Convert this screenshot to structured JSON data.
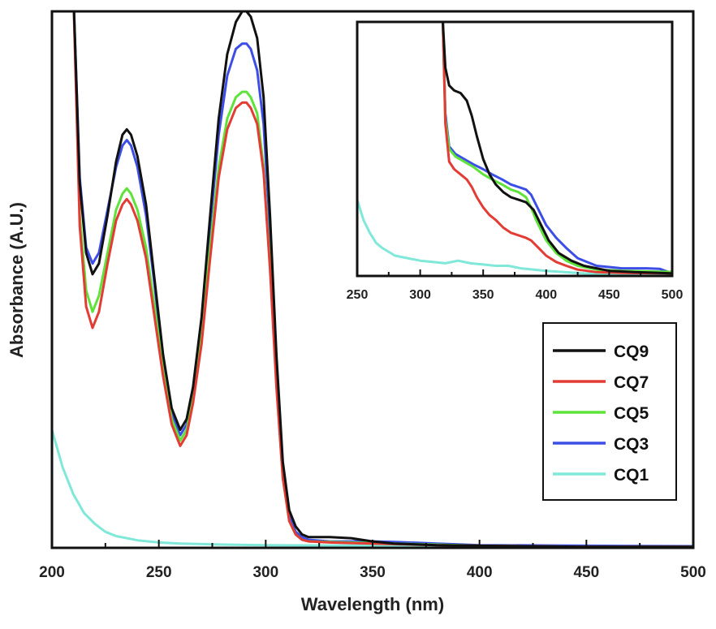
{
  "chart_data": [
    {
      "type": "line",
      "xlabel": "Wavelength (nm)",
      "ylabel": "Absorbance (A.U.)",
      "xlim": [
        200,
        500
      ],
      "ylim": [
        0,
        1
      ],
      "y_tick_labels_shown": false,
      "x_ticks": [
        "200",
        "250",
        "300",
        "350",
        "400",
        "450",
        "500"
      ],
      "legend": {
        "placement": "right",
        "entries": [
          "CQ9",
          "CQ7",
          "CQ5",
          "CQ3",
          "CQ1"
        ]
      },
      "grid": false,
      "series": [
        {
          "name": "CQ9",
          "color": "#111111",
          "x": [
            210,
            213,
            216,
            219,
            222,
            226,
            230,
            233,
            235,
            237,
            240,
            244,
            248,
            252,
            256,
            260,
            263,
            266,
            270,
            274,
            278,
            282,
            286,
            289,
            291,
            293,
            296,
            299,
            302,
            305,
            308,
            311,
            314,
            317,
            320,
            330,
            340,
            350,
            360,
            380,
            400,
            450,
            500
          ],
          "y": [
            1.04,
            0.68,
            0.55,
            0.51,
            0.53,
            0.62,
            0.72,
            0.77,
            0.78,
            0.77,
            0.73,
            0.64,
            0.5,
            0.36,
            0.26,
            0.22,
            0.24,
            0.3,
            0.43,
            0.62,
            0.8,
            0.92,
            0.98,
            1.0,
            1.0,
            0.99,
            0.95,
            0.84,
            0.62,
            0.36,
            0.16,
            0.07,
            0.04,
            0.025,
            0.02,
            0.02,
            0.018,
            0.012,
            0.008,
            0.005,
            0.004,
            0.002,
            0.002
          ]
        },
        {
          "name": "CQ7",
          "color": "#e23c35",
          "x": [
            210,
            213,
            216,
            219,
            222,
            226,
            230,
            233,
            235,
            237,
            240,
            244,
            248,
            252,
            256,
            260,
            263,
            266,
            270,
            274,
            278,
            282,
            286,
            289,
            291,
            293,
            296,
            299,
            302,
            305,
            308,
            311,
            314,
            317,
            320,
            330,
            340,
            350,
            360,
            380,
            400,
            450,
            500
          ],
          "y": [
            1.04,
            0.6,
            0.45,
            0.41,
            0.44,
            0.53,
            0.61,
            0.64,
            0.65,
            0.64,
            0.61,
            0.54,
            0.43,
            0.32,
            0.23,
            0.19,
            0.21,
            0.27,
            0.38,
            0.54,
            0.69,
            0.78,
            0.82,
            0.83,
            0.83,
            0.82,
            0.79,
            0.7,
            0.52,
            0.3,
            0.13,
            0.05,
            0.025,
            0.015,
            0.012,
            0.01,
            0.009,
            0.008,
            0.007,
            0.005,
            0.004,
            0.002,
            0.002
          ]
        },
        {
          "name": "CQ5",
          "color": "#5ee33a",
          "x": [
            210,
            213,
            216,
            219,
            222,
            226,
            230,
            233,
            235,
            237,
            240,
            244,
            248,
            252,
            256,
            260,
            263,
            266,
            270,
            274,
            278,
            282,
            286,
            289,
            291,
            293,
            296,
            299,
            302,
            305,
            308,
            311,
            314,
            317,
            320,
            330,
            340,
            350,
            360,
            380,
            400,
            450,
            500
          ],
          "y": [
            1.04,
            0.62,
            0.48,
            0.44,
            0.47,
            0.55,
            0.63,
            0.66,
            0.67,
            0.66,
            0.63,
            0.56,
            0.45,
            0.33,
            0.24,
            0.2,
            0.22,
            0.28,
            0.4,
            0.56,
            0.71,
            0.8,
            0.84,
            0.85,
            0.85,
            0.84,
            0.81,
            0.71,
            0.53,
            0.31,
            0.13,
            0.05,
            0.025,
            0.015,
            0.012,
            0.011,
            0.01,
            0.009,
            0.008,
            0.006,
            0.004,
            0.002,
            0.002
          ]
        },
        {
          "name": "CQ3",
          "color": "#3d4ee6",
          "x": [
            210,
            213,
            216,
            219,
            222,
            226,
            230,
            233,
            235,
            237,
            240,
            244,
            248,
            252,
            256,
            260,
            263,
            266,
            270,
            274,
            278,
            282,
            286,
            289,
            291,
            293,
            296,
            299,
            302,
            305,
            308,
            311,
            314,
            317,
            320,
            330,
            340,
            350,
            360,
            380,
            400,
            450,
            500
          ],
          "y": [
            1.04,
            0.69,
            0.56,
            0.53,
            0.55,
            0.63,
            0.71,
            0.75,
            0.76,
            0.75,
            0.71,
            0.62,
            0.49,
            0.35,
            0.25,
            0.21,
            0.23,
            0.29,
            0.42,
            0.6,
            0.77,
            0.88,
            0.93,
            0.94,
            0.94,
            0.93,
            0.89,
            0.79,
            0.59,
            0.34,
            0.15,
            0.06,
            0.03,
            0.02,
            0.015,
            0.012,
            0.012,
            0.012,
            0.011,
            0.008,
            0.005,
            0.004,
            0.003
          ]
        },
        {
          "name": "CQ1",
          "color": "#7fe8d9",
          "x": [
            200,
            205,
            210,
            215,
            220,
            225,
            230,
            240,
            250,
            260,
            280,
            300,
            350,
            400,
            450,
            500
          ],
          "y": [
            0.22,
            0.15,
            0.1,
            0.065,
            0.045,
            0.03,
            0.022,
            0.014,
            0.01,
            0.008,
            0.006,
            0.005,
            0.004,
            0.003,
            0.002,
            0.002
          ]
        }
      ]
    },
    {
      "type": "line",
      "role": "inset",
      "xlim": [
        250,
        500
      ],
      "ylim": [
        0,
        1
      ],
      "x_ticks": [
        "250",
        "300",
        "350",
        "400",
        "450",
        "500"
      ],
      "y_tick_labels_shown": false,
      "grid": false,
      "series": [
        {
          "name": "CQ9",
          "color": "#111111",
          "x": [
            318,
            320,
            323,
            327,
            332,
            337,
            341,
            345,
            350,
            355,
            360,
            366,
            372,
            378,
            384,
            390,
            396,
            402,
            410,
            420,
            430,
            450,
            470,
            490,
            500
          ],
          "y": [
            1.0,
            0.82,
            0.75,
            0.73,
            0.72,
            0.69,
            0.63,
            0.55,
            0.46,
            0.4,
            0.36,
            0.33,
            0.31,
            0.3,
            0.29,
            0.26,
            0.2,
            0.14,
            0.09,
            0.06,
            0.04,
            0.02,
            0.015,
            0.012,
            0.01
          ]
        },
        {
          "name": "CQ7",
          "color": "#e23c35",
          "x": [
            318,
            320,
            323,
            327,
            332,
            337,
            341,
            345,
            350,
            355,
            360,
            366,
            372,
            378,
            384,
            388,
            392,
            396,
            400,
            408,
            416,
            425,
            440,
            460,
            500
          ],
          "y": [
            1.0,
            0.6,
            0.45,
            0.42,
            0.4,
            0.38,
            0.35,
            0.31,
            0.27,
            0.24,
            0.22,
            0.19,
            0.17,
            0.16,
            0.15,
            0.14,
            0.12,
            0.1,
            0.08,
            0.055,
            0.04,
            0.025,
            0.015,
            0.012,
            0.01
          ]
        },
        {
          "name": "CQ5",
          "color": "#5ee33a",
          "x": [
            318,
            320,
            323,
            328,
            335,
            342,
            350,
            357,
            365,
            372,
            378,
            384,
            388,
            392,
            396,
            400,
            408,
            416,
            425,
            440,
            460,
            480,
            500
          ],
          "y": [
            1.0,
            0.62,
            0.5,
            0.47,
            0.45,
            0.43,
            0.4,
            0.38,
            0.36,
            0.34,
            0.33,
            0.31,
            0.27,
            0.22,
            0.18,
            0.14,
            0.09,
            0.06,
            0.04,
            0.025,
            0.02,
            0.018,
            0.016
          ]
        },
        {
          "name": "CQ3",
          "color": "#3d4ee6",
          "x": [
            318,
            320,
            323,
            328,
            335,
            342,
            350,
            357,
            365,
            372,
            378,
            384,
            388,
            392,
            396,
            400,
            408,
            416,
            425,
            440,
            460,
            480,
            490,
            500
          ],
          "y": [
            1.0,
            0.64,
            0.51,
            0.48,
            0.46,
            0.44,
            0.42,
            0.4,
            0.38,
            0.36,
            0.35,
            0.34,
            0.32,
            0.28,
            0.24,
            0.2,
            0.15,
            0.11,
            0.07,
            0.04,
            0.03,
            0.03,
            0.028,
            0.01
          ]
        },
        {
          "name": "CQ1",
          "color": "#7fe8d9",
          "x": [
            250,
            255,
            260,
            265,
            270,
            280,
            290,
            300,
            310,
            320,
            330,
            340,
            350,
            360,
            370,
            380,
            400,
            430,
            460,
            500
          ],
          "y": [
            0.3,
            0.22,
            0.17,
            0.13,
            0.11,
            0.08,
            0.07,
            0.06,
            0.055,
            0.05,
            0.06,
            0.05,
            0.045,
            0.04,
            0.04,
            0.03,
            0.02,
            0.01,
            0.008,
            0.005
          ]
        }
      ]
    }
  ]
}
